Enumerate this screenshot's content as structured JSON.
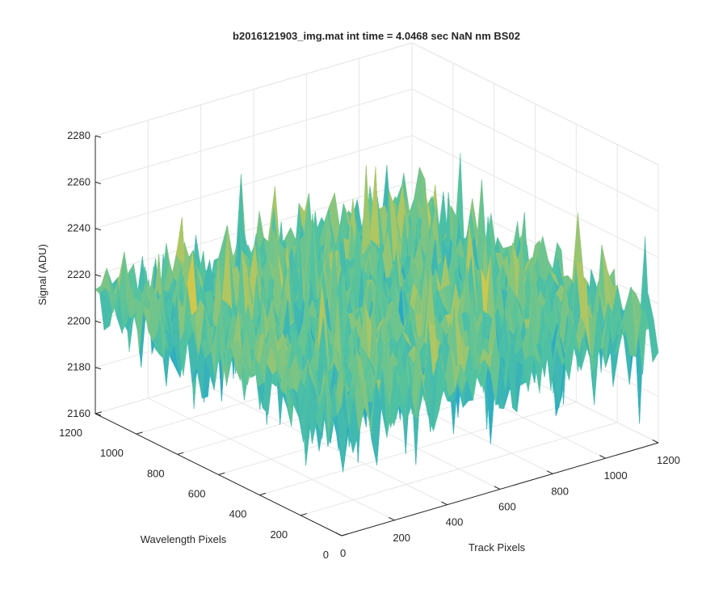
{
  "chart_data": {
    "type": "surface",
    "title": "b2016121903_img.mat int time = 4.0468 sec  NaN nm BS02",
    "xlabel": "Track Pixels",
    "ylabel": "Wavelength Pixels",
    "zlabel": "Signal (ADU)",
    "xlim": [
      0,
      1200
    ],
    "ylim": [
      0,
      1200
    ],
    "zlim": [
      2160,
      2280
    ],
    "x_ticks": [
      "0",
      "200",
      "400",
      "600",
      "800",
      "1000",
      "1200"
    ],
    "y_ticks": [
      "0",
      "200",
      "400",
      "600",
      "800",
      "1000",
      "1200"
    ],
    "z_ticks": [
      "2160",
      "2180",
      "2200",
      "2220",
      "2240",
      "2260",
      "2280"
    ],
    "grid": true,
    "colormap": "parula",
    "surface": {
      "description_values": "noisy detector image, baseline about 2210 ADU",
      "mean": 2210,
      "noise_std": 9,
      "min": 2165,
      "max": 2265
    },
    "colors": {
      "axis": "#262626",
      "grid": "#e6e6e6",
      "low": "#1a9fd6",
      "mid": "#52c3a0",
      "high": "#e8c83c"
    }
  }
}
